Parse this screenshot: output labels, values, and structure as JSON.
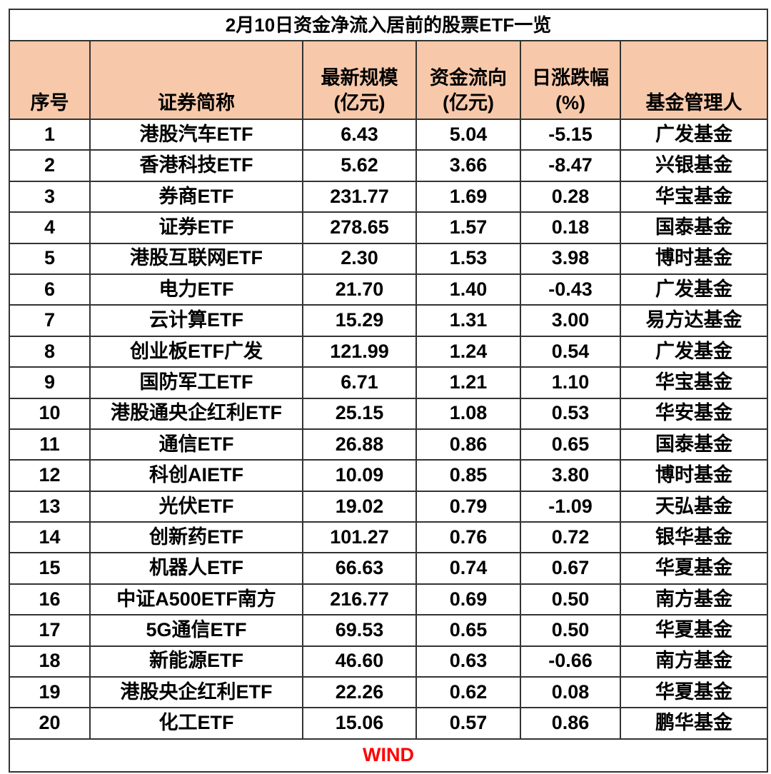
{
  "title": "2月10日资金净流入居前的股票ETF一览",
  "headers": [
    {
      "line1": "",
      "line2": "序号"
    },
    {
      "line1": "",
      "line2": "证券简称"
    },
    {
      "line1": "最新规模",
      "line2": "(亿元)"
    },
    {
      "line1": "资金流向",
      "line2": "(亿元)"
    },
    {
      "line1": "日涨跌幅",
      "line2": "(%)"
    },
    {
      "line1": "",
      "line2": "基金管理人"
    }
  ],
  "rows": [
    [
      "1",
      "港股汽车ETF",
      "6.43",
      "5.04",
      "-5.15",
      "广发基金"
    ],
    [
      "2",
      "香港科技ETF",
      "5.62",
      "3.66",
      "-8.47",
      "兴银基金"
    ],
    [
      "3",
      "券商ETF",
      "231.77",
      "1.69",
      "0.28",
      "华宝基金"
    ],
    [
      "4",
      "证券ETF",
      "278.65",
      "1.57",
      "0.18",
      "国泰基金"
    ],
    [
      "5",
      "港股互联网ETF",
      "2.30",
      "1.53",
      "3.98",
      "博时基金"
    ],
    [
      "6",
      "电力ETF",
      "21.70",
      "1.40",
      "-0.43",
      "广发基金"
    ],
    [
      "7",
      "云计算ETF",
      "15.29",
      "1.31",
      "3.00",
      "易方达基金"
    ],
    [
      "8",
      "创业板ETF广发",
      "121.99",
      "1.24",
      "0.54",
      "广发基金"
    ],
    [
      "9",
      "国防军工ETF",
      "6.71",
      "1.21",
      "1.10",
      "华宝基金"
    ],
    [
      "10",
      "港股通央企红利ETF",
      "25.15",
      "1.08",
      "0.53",
      "华安基金"
    ],
    [
      "11",
      "通信ETF",
      "26.88",
      "0.86",
      "0.65",
      "国泰基金"
    ],
    [
      "12",
      "科创AIETF",
      "10.09",
      "0.85",
      "3.80",
      "博时基金"
    ],
    [
      "13",
      "光伏ETF",
      "19.02",
      "0.79",
      "-1.09",
      "天弘基金"
    ],
    [
      "14",
      "创新药ETF",
      "101.27",
      "0.76",
      "0.72",
      "银华基金"
    ],
    [
      "15",
      "机器人ETF",
      "66.63",
      "0.74",
      "0.67",
      "华夏基金"
    ],
    [
      "16",
      "中证A500ETF南方",
      "216.77",
      "0.69",
      "0.50",
      "南方基金"
    ],
    [
      "17",
      "5G通信ETF",
      "69.53",
      "0.65",
      "0.50",
      "华夏基金"
    ],
    [
      "18",
      "新能源ETF",
      "46.60",
      "0.63",
      "-0.66",
      "南方基金"
    ],
    [
      "19",
      "港股央企红利ETF",
      "22.26",
      "0.62",
      "0.08",
      "华夏基金"
    ],
    [
      "20",
      "化工ETF",
      "15.06",
      "0.57",
      "0.86",
      "鹏华基金"
    ]
  ],
  "source": "WIND",
  "colors": {
    "header_bg": "#f7c9aa",
    "source_text": "#ff0000",
    "border": "#333333"
  }
}
